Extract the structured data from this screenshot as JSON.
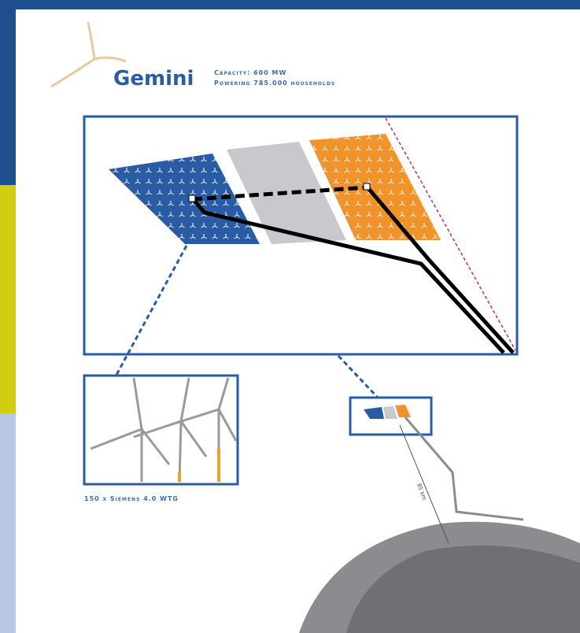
{
  "header": {
    "logo": "Gemini",
    "capacity": "Capacity: 600 MW",
    "households": "Powering 785.000 households"
  },
  "inset": {
    "caption": "150 x Siemens 4.0 WTG"
  },
  "map": {
    "distance": "85 km"
  }
}
